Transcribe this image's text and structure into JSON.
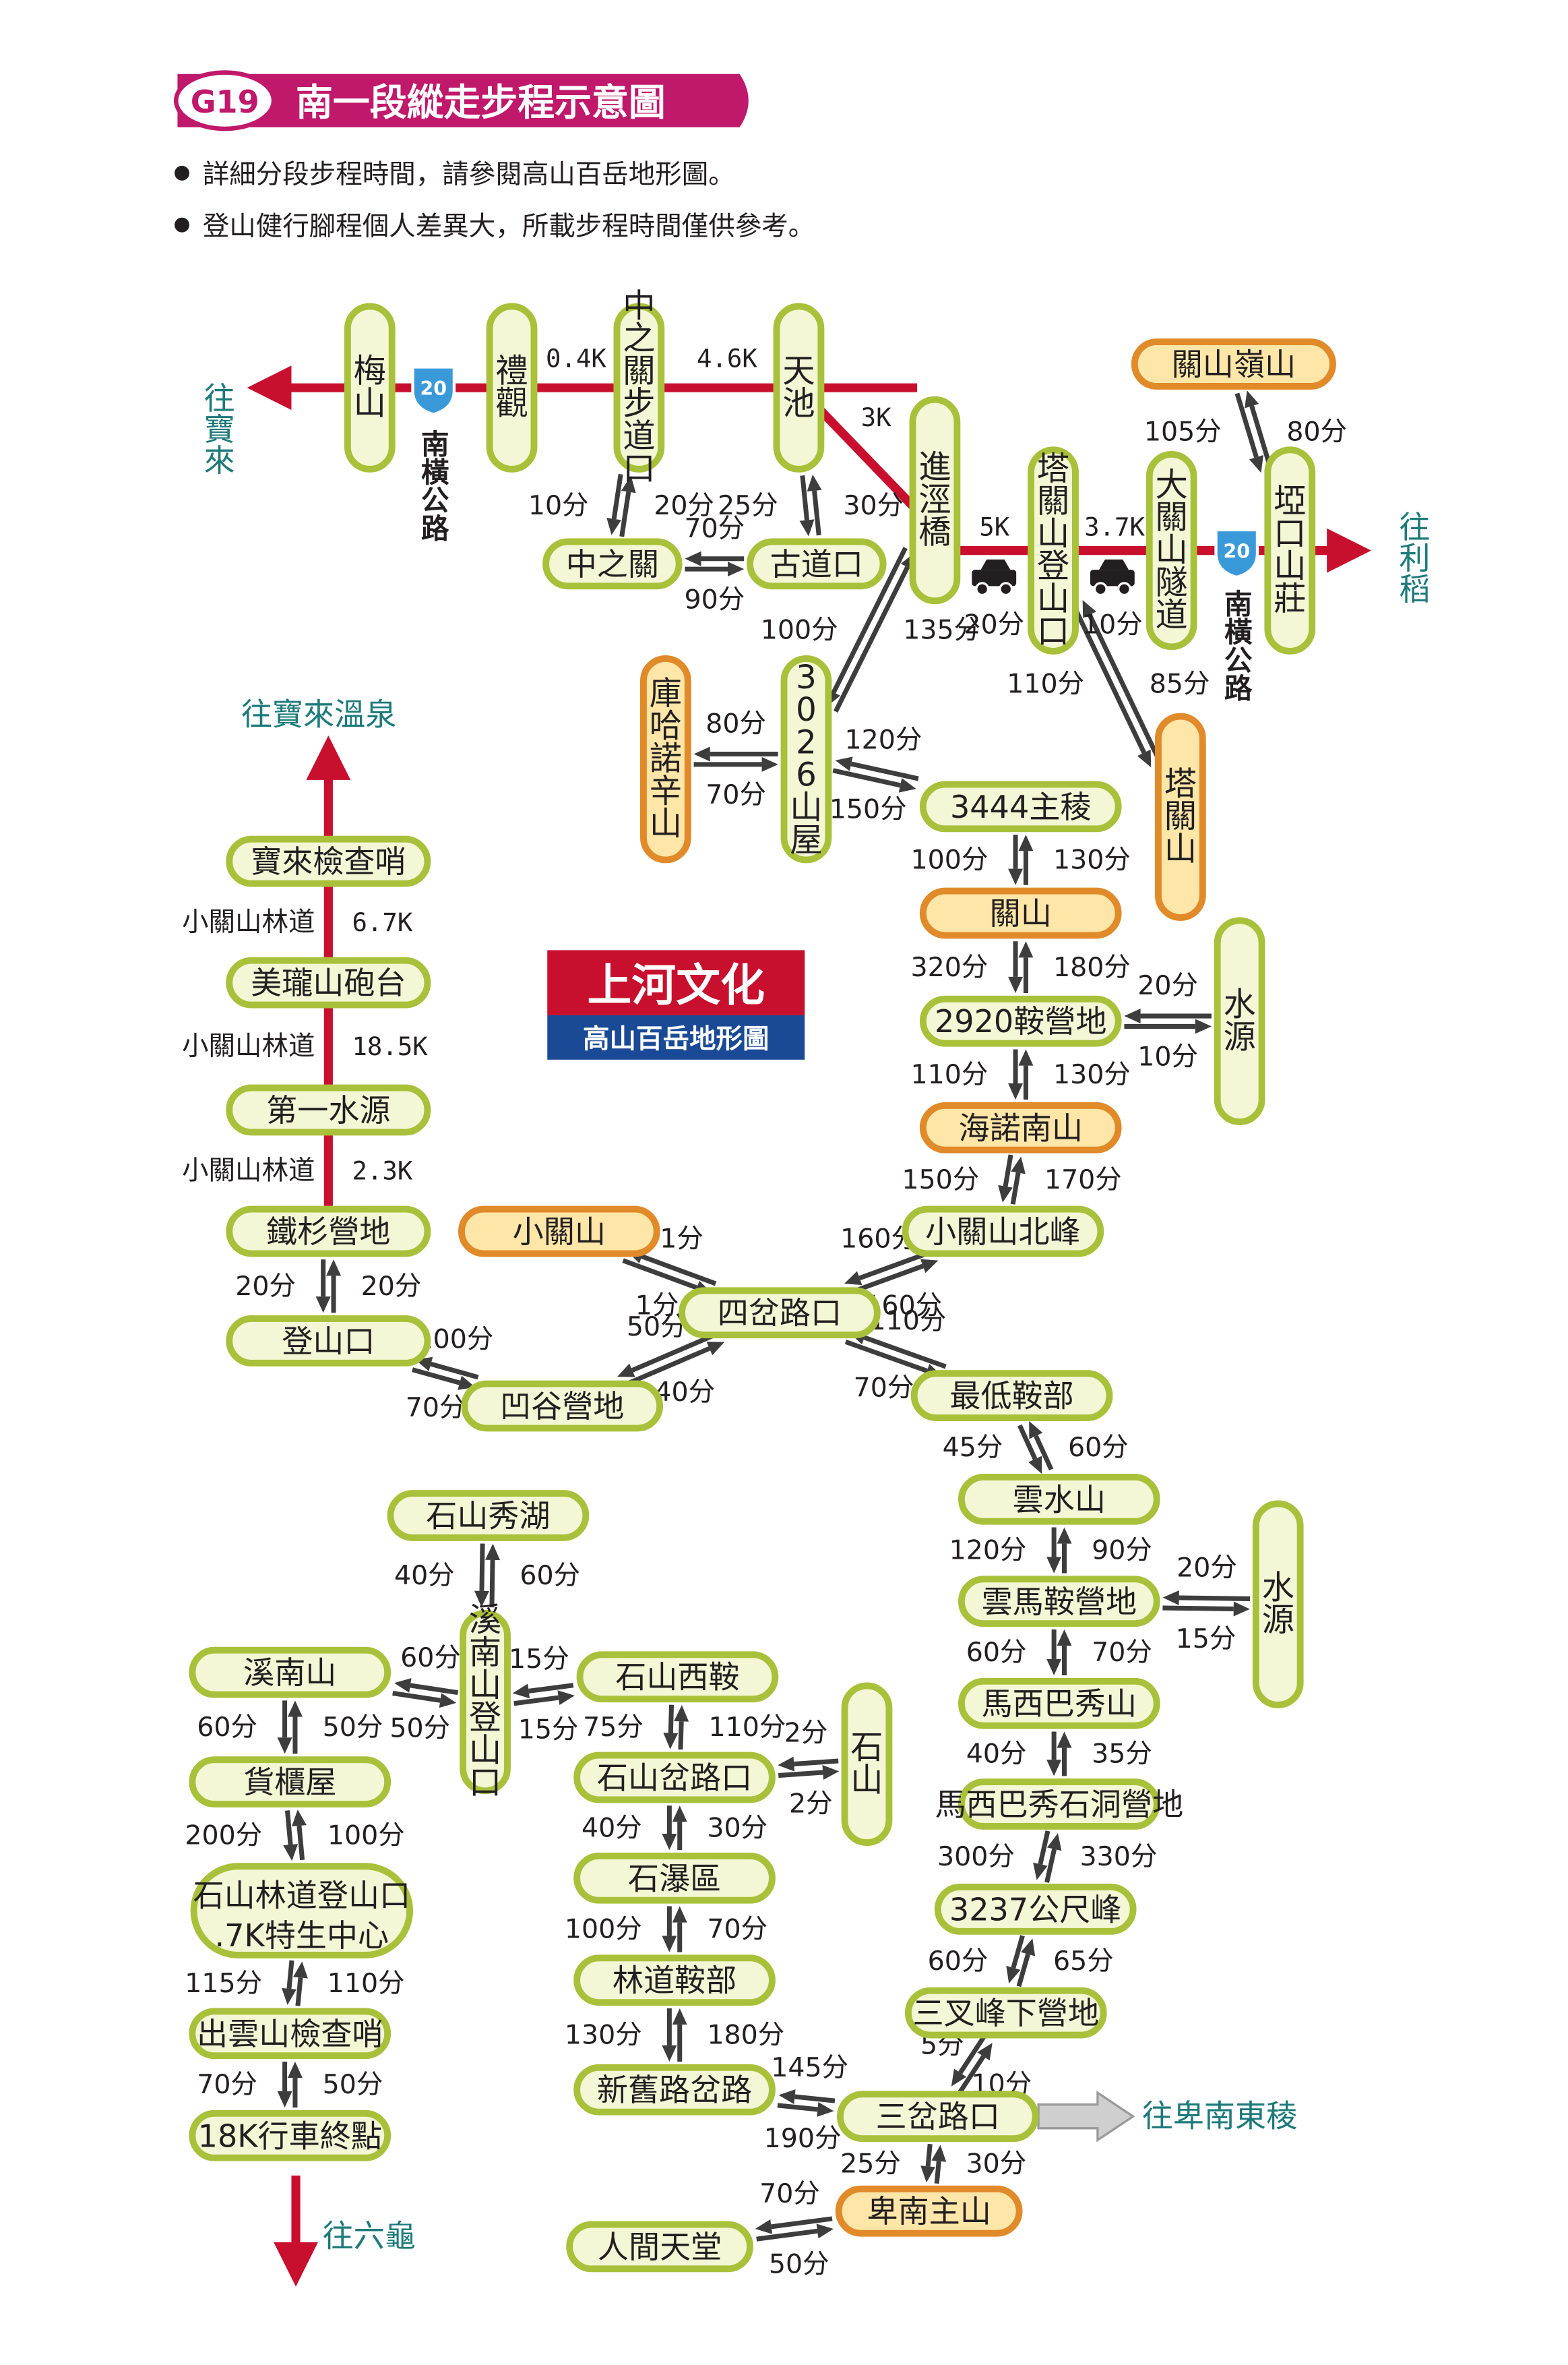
{
  "header": {
    "badge": "G19",
    "title": "南一段縱走步程示意圖",
    "notes": [
      "詳細分段步程時間，請參閱高山百岳地形圖。",
      "登山健行腳程個人差異大，所載步程時間僅供參考。"
    ]
  },
  "logo": {
    "name": "上河文化",
    "subtitle": "高山百岳地形圖"
  },
  "directions": {
    "to_baolai": "往寶來",
    "to_lidao": "往利稻",
    "to_baolai_hotspring": "往寶來溫泉",
    "to_liugui": "往六龜",
    "to_beinan_east_ridge": "往卑南東稜"
  },
  "roads": {
    "highway_number": "20",
    "highway_name": "南橫公路"
  },
  "colors": {
    "road": "#c8102e",
    "node_green_fill": "#f3f7d5",
    "node_green_border": "#a9c03a",
    "node_orange_fill": "#fde6a7",
    "node_orange_border": "#e08a2a",
    "direction_text": "#1d7a7a",
    "header_badge": "#c0186a"
  },
  "nodes": {
    "meishan": "梅山",
    "liguan": "禮觀",
    "zhongzhiguan_trailhead": "中之關步道口",
    "tianchi": "天池",
    "jinjingqiao": "進涇橋",
    "taguanshan_trailhead": "塔關山登山口",
    "daguanshan_tunnel": "大關山隧道",
    "yakoushanzhuang": "埡口山莊",
    "guanshanling": "關山嶺山",
    "zhongzhiguan": "中之關",
    "gudaokou": "古道口",
    "kuhanuoxinshan": "庫哈諾辛山",
    "hut3026": "3026山屋",
    "taguanshan": "塔關山",
    "ridge3444": "3444主稜",
    "guanshan": "關山",
    "camp2920": "2920鞍營地",
    "shuiyuan": "水源",
    "hainuonanshan": "海諾南山",
    "xiaoguanshan_north": "小關山北峰",
    "xiaoguanshan": "小關山",
    "sichalukou": "四岔路口",
    "zuidi_anbu": "最低鞍部",
    "yunshuishan": "雲水山",
    "yunma_camp": "雲馬鞍營地",
    "maxibaxiushan": "馬西巴秀山",
    "maxibaxiu_cave_camp": "馬西巴秀石洞營地",
    "peak3237": "3237公尺峰",
    "sanchafeng_camp": "三叉峰下營地",
    "sanchalukou": "三岔路口",
    "beinanzhushan": "卑南主山",
    "renjiantiantang": "人間天堂",
    "baolai_checkpoint": "寶來檢查哨",
    "meilongshan_battery": "美瓏山砲台",
    "diyi_shuiyuan": "第一水源",
    "tieshan_camp": "鐵杉營地",
    "dengshankou": "登山口",
    "aogu_camp": "凹谷營地",
    "shishan_xiuhu": "石山秀湖",
    "xinanshan_trailhead": "溪南山登山口",
    "xinanshan": "溪南山",
    "shishan_xian": "石山西鞍",
    "huoguiwu": "貨櫃屋",
    "shishan_chalukou": "石山岔路口",
    "shishan": "石山",
    "shipuqu": "石瀑區",
    "trailhead_7k": "石山林道登山口.7K特生中心",
    "trailhead_7k_line1": "石山林道登山口",
    "trailhead_7k_line2": ".7K特生中心",
    "linadao_anbu": "林道鞍部",
    "chuyunshan_checkpoint": "出雲山檢查哨",
    "xinjiulu_chalu": "新舊路岔路",
    "end_18k": "18K行車終點"
  },
  "forest_road": {
    "name": "小關山林道",
    "d1": "6.7K",
    "d2": "18.5K",
    "d3": "2.3K"
  },
  "distances": {
    "liguan_zhongzhiguan": "0.4K",
    "zhongzhiguan_tianchi": "4.6K",
    "tianchi_jinjing": "3K",
    "jinjing_taguan": "5K",
    "taguan_tunnel": "3.7K"
  },
  "times": {
    "zzg_a": "10分",
    "zzg_b": "20分",
    "gdk_a": "25分",
    "gdk_b": "30分",
    "zg_gd_a": "90分",
    "zg_gd_b": "70分",
    "jj_tg": "20分",
    "tg_tunnel": "10分",
    "gsl_a": "105分",
    "gsl_b": "80分",
    "jj_hut_a": "100分",
    "jj_hut_b": "135分",
    "khn_a": "70分",
    "khn_b": "80分",
    "tgs_a": "110分",
    "tgs_b": "85分",
    "hut_ridge_a": "150分",
    "hut_ridge_b": "120分",
    "ridge_gs_a": "100分",
    "ridge_gs_b": "130分",
    "gs_2920_a": "320分",
    "gs_2920_b": "180分",
    "sy1_a": "10分",
    "sy1_b": "20分",
    "c2920_hn_a": "110分",
    "c2920_hn_b": "130分",
    "hn_xgn_a": "150分",
    "hn_xgn_b": "170分",
    "xgn_sc_a": "160分",
    "xgn_sc_b": "160分",
    "xg_sc_a": "1分",
    "xg_sc_b": "1分",
    "sc_zd_a": "70分",
    "sc_zd_b": "110分",
    "sc_ag_a": "50分",
    "sc_ag_b": "40分",
    "ag_dsk_a": "100分",
    "ag_dsk_b": "70分",
    "ts_dsk_a": "20分",
    "ts_dsk_b": "20分",
    "zd_ys_a": "45分",
    "zd_ys_b": "60分",
    "ys_ym_a": "120分",
    "ys_ym_b": "90分",
    "sy2_a": "15分",
    "sy2_b": "20分",
    "ym_mx_a": "60分",
    "ym_mx_b": "70分",
    "mx_cave_a": "40分",
    "mx_cave_b": "35分",
    "cave_3237_a": "300分",
    "cave_3237_b": "330分",
    "p3237_scf_a": "60分",
    "p3237_scf_b": "65分",
    "scf_sc_a": "5分",
    "scf_sc_b": "10分",
    "xj_sc_a": "190分",
    "xj_sc_b": "145分",
    "sc_bn_a": "25分",
    "sc_bn_b": "30分",
    "bn_rj_a": "70分",
    "bn_rj_b": "50分",
    "sx_xn_a": "40分",
    "sx_xn_b": "60分",
    "xn_xnt_a": "50分",
    "xn_xnt_b": "60分",
    "xnt_sx_a": "15分",
    "xnt_sx_b": "15分",
    "xn_hg_a": "60分",
    "xn_hg_b": "50分",
    "sxa_sc_a": "75分",
    "sxa_sc_b": "110分",
    "ss_a": "2分",
    "ss_b": "2分",
    "sc_sp_a": "40分",
    "sc_sp_b": "30分",
    "hg_7k_a": "200分",
    "hg_7k_b": "100分",
    "sp_ld_a": "100分",
    "sp_ld_b": "70分",
    "k7_cy_a": "115分",
    "k7_cy_b": "110分",
    "ld_xj_a": "130分",
    "ld_xj_b": "180分",
    "cy_18k_a": "70分",
    "cy_18k_b": "50分"
  }
}
